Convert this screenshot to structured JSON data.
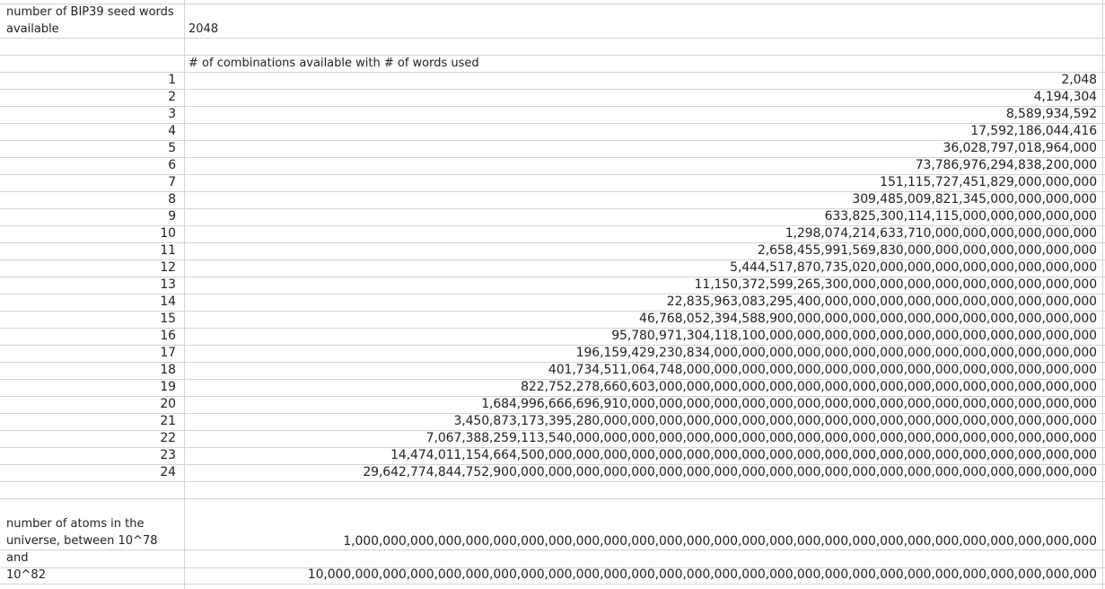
{
  "header": {
    "seed_label": "number of BIP39 seed words available",
    "seed_value": "2048",
    "combinations_header": "# of combinations available with # of words used"
  },
  "rows": [
    {
      "words": "1",
      "combinations": "2,048"
    },
    {
      "words": "2",
      "combinations": "4,194,304"
    },
    {
      "words": "3",
      "combinations": "8,589,934,592"
    },
    {
      "words": "4",
      "combinations": "17,592,186,044,416"
    },
    {
      "words": "5",
      "combinations": "36,028,797,018,964,000"
    },
    {
      "words": "6",
      "combinations": "73,786,976,294,838,200,000"
    },
    {
      "words": "7",
      "combinations": "151,115,727,451,829,000,000,000"
    },
    {
      "words": "8",
      "combinations": "309,485,009,821,345,000,000,000,000"
    },
    {
      "words": "9",
      "combinations": "633,825,300,114,115,000,000,000,000,000"
    },
    {
      "words": "10",
      "combinations": "1,298,074,214,633,710,000,000,000,000,000,000"
    },
    {
      "words": "11",
      "combinations": "2,658,455,991,569,830,000,000,000,000,000,000,000"
    },
    {
      "words": "12",
      "combinations": "5,444,517,870,735,020,000,000,000,000,000,000,000,000"
    },
    {
      "words": "13",
      "combinations": "11,150,372,599,265,300,000,000,000,000,000,000,000,000,000"
    },
    {
      "words": "14",
      "combinations": "22,835,963,083,295,400,000,000,000,000,000,000,000,000,000,000"
    },
    {
      "words": "15",
      "combinations": "46,768,052,394,588,900,000,000,000,000,000,000,000,000,000,000,000"
    },
    {
      "words": "16",
      "combinations": "95,780,971,304,118,100,000,000,000,000,000,000,000,000,000,000,000,000"
    },
    {
      "words": "17",
      "combinations": "196,159,429,230,834,000,000,000,000,000,000,000,000,000,000,000,000,000,000"
    },
    {
      "words": "18",
      "combinations": "401,734,511,064,748,000,000,000,000,000,000,000,000,000,000,000,000,000,000,000"
    },
    {
      "words": "19",
      "combinations": "822,752,278,660,603,000,000,000,000,000,000,000,000,000,000,000,000,000,000,000,000"
    },
    {
      "words": "20",
      "combinations": "1,684,996,666,696,910,000,000,000,000,000,000,000,000,000,000,000,000,000,000,000,000,000"
    },
    {
      "words": "21",
      "combinations": "3,450,873,173,395,280,000,000,000,000,000,000,000,000,000,000,000,000,000,000,000,000,000,000"
    },
    {
      "words": "22",
      "combinations": "7,067,388,259,113,540,000,000,000,000,000,000,000,000,000,000,000,000,000,000,000,000,000,000,000"
    },
    {
      "words": "23",
      "combinations": "14,474,011,154,664,500,000,000,000,000,000,000,000,000,000,000,000,000,000,000,000,000,000,000,000,000"
    },
    {
      "words": "24",
      "combinations": "29,642,774,844,752,900,000,000,000,000,000,000,000,000,000,000,000,000,000,000,000,000,000,000,000,000,000"
    }
  ],
  "atoms": {
    "label": "number of atoms in the universe, between 10^78 and",
    "low_value": "1,000,000,000,000,000,000,000,000,000,000,000,000,000,000,000,000,000,000,000,000,000,000,000,000,000,000,000",
    "high_label": "10^82",
    "high_value": "10,000,000,000,000,000,000,000,000,000,000,000,000,000,000,000,000,000,000,000,000,000,000,000,000,000,000,000,000"
  }
}
